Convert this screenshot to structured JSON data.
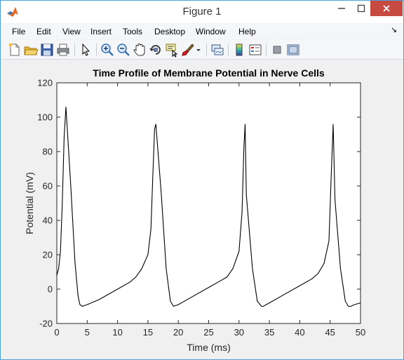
{
  "window": {
    "title": "Figure 1"
  },
  "menu": [
    "File",
    "Edit",
    "View",
    "Insert",
    "Tools",
    "Desktop",
    "Window",
    "Help"
  ],
  "toolbar_icons": [
    "new-figure-icon",
    "open-file-icon",
    "save-icon",
    "print-icon",
    "pointer-icon",
    "zoom-in-icon",
    "zoom-out-icon",
    "pan-hand-icon",
    "rotate-3d-icon",
    "data-cursor-icon",
    "brush-icon",
    "brush-dropdown-icon",
    "link-plot-icon",
    "colorbar-icon",
    "legend-icon",
    "hide-plot-tools-icon",
    "show-plot-tools-icon"
  ],
  "chart_data": {
    "type": "line",
    "title": "Time Profile of Membrane Potential in Nerve Cells",
    "xlabel": "Time (ms)",
    "ylabel": "Potential (mV)",
    "xlim": [
      0,
      50
    ],
    "ylim": [
      -20,
      120
    ],
    "xticks": [
      0,
      5,
      10,
      15,
      20,
      25,
      30,
      35,
      40,
      45,
      50
    ],
    "yticks": [
      -20,
      0,
      20,
      40,
      60,
      80,
      100,
      120
    ],
    "grid": false,
    "line_color": "#000000",
    "series": [
      {
        "x": [
          0,
          0.3,
          0.6,
          0.9,
          1.2,
          1.5,
          2.3,
          3.0,
          3.5,
          3.8,
          4.2,
          5,
          7,
          10,
          12,
          13,
          14,
          15,
          15.5,
          15.8,
          16.1,
          16.3,
          17.2,
          18.0,
          18.7,
          19.2,
          20,
          22,
          25,
          27,
          28,
          29,
          30,
          30.5,
          30.8,
          31.0,
          31.2,
          32.2,
          33.0,
          33.7,
          34.0,
          35,
          37,
          40,
          42,
          43,
          44,
          44.8,
          45.2,
          45.5,
          45.8,
          46.7,
          47.5,
          48.0,
          48.4,
          49,
          50
        ],
        "y": [
          8,
          12,
          22,
          50,
          88,
          106,
          60,
          15,
          -4,
          -9,
          -10,
          -9,
          -6,
          0,
          4,
          7,
          12,
          20,
          35,
          65,
          93,
          96,
          55,
          12,
          -7,
          -10,
          -9,
          -5,
          1,
          5,
          7,
          12,
          22,
          45,
          82,
          96,
          55,
          12,
          -7,
          -10,
          -10,
          -8,
          -4,
          2,
          6,
          9,
          15,
          28,
          68,
          96,
          52,
          12,
          -7,
          -10,
          -10,
          -9,
          -8
        ]
      }
    ]
  }
}
